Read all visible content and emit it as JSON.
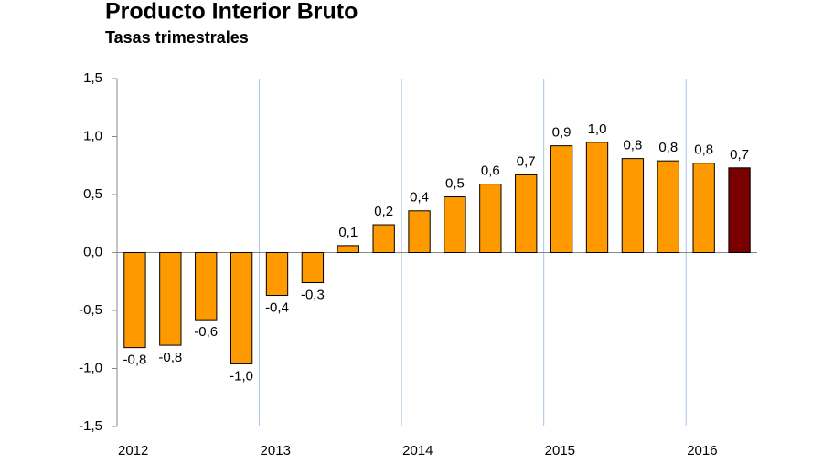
{
  "chart_data": {
    "type": "bar",
    "title": "Producto Interior Bruto",
    "subtitle": "Tasas trimestrales",
    "categories": [
      "2012",
      null,
      null,
      null,
      "2013",
      null,
      null,
      null,
      "2014",
      null,
      null,
      null,
      "2015",
      null,
      null,
      null,
      "2016",
      null
    ],
    "values": [
      -0.82,
      -0.8,
      -0.58,
      -0.96,
      -0.37,
      -0.26,
      0.06,
      0.24,
      0.36,
      0.48,
      0.59,
      0.67,
      0.92,
      0.95,
      0.81,
      0.79,
      0.77,
      0.73
    ],
    "value_labels": [
      "-0,8",
      "-0,8",
      "-0,6",
      "-1,0",
      "-0,4",
      "-0,3",
      "0,1",
      "0,2",
      "0,4",
      "0,5",
      "0,6",
      "0,7",
      "0,9",
      "1,0",
      "0,8",
      "0,8",
      "0,8",
      "0,7"
    ],
    "colors": [
      "#ff9900",
      "#ff9900",
      "#ff9900",
      "#ff9900",
      "#ff9900",
      "#ff9900",
      "#ff9900",
      "#ff9900",
      "#ff9900",
      "#ff9900",
      "#ff9900",
      "#ff9900",
      "#ff9900",
      "#ff9900",
      "#ff9900",
      "#ff9900",
      "#ff9900",
      "#7a0000"
    ],
    "ylim": [
      -1.5,
      1.5
    ],
    "yticks": [
      {
        "value": -1.5,
        "label": "-1,5"
      },
      {
        "value": -1,
        "label": "-1,0"
      },
      {
        "value": -0.5,
        "label": "-0,5"
      },
      {
        "value": 0,
        "label": "0,0"
      },
      {
        "value": 0.5,
        "label": "0,5"
      },
      {
        "value": 1,
        "label": "1,0"
      },
      {
        "value": 1.5,
        "label": "1,5"
      }
    ]
  }
}
